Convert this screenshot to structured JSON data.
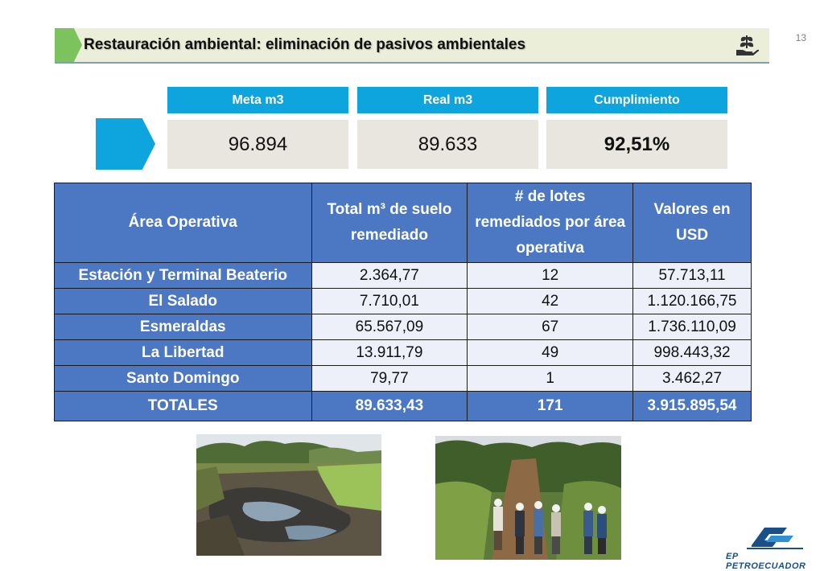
{
  "page_number": "13",
  "title": "Restauración ambiental: eliminación de pasivos ambientales",
  "kpis": [
    {
      "label": "Meta m3",
      "value": "96.894"
    },
    {
      "label": "Real m3",
      "value": "89.633"
    },
    {
      "label": "Cumplimiento",
      "value": "92,51%"
    }
  ],
  "table": {
    "headers": [
      "Área Operativa",
      "Total m³ de suelo remediado",
      "# de lotes remediados por área operativa",
      "Valores en USD"
    ],
    "rows": [
      [
        "Estación y Terminal Beaterio",
        "2.364,77",
        "12",
        "57.713,11"
      ],
      [
        "El Salado",
        "7.710,01",
        "42",
        "1.120.166,75"
      ],
      [
        "Esmeraldas",
        "65.567,09",
        "67",
        "1.736.110,09"
      ],
      [
        "La Libertad",
        "13.911,79",
        "49",
        "998.443,32"
      ],
      [
        "Santo Domingo",
        "79,77",
        "1",
        "3.462,27"
      ]
    ],
    "totals": [
      "TOTALES",
      "89.633,43",
      "171",
      "3.915.895,54"
    ]
  },
  "logo_text": "EP PETROECUADOR",
  "colors": {
    "accent_blue": "#0ea4dd",
    "table_blue": "#4c77c3",
    "title_green": "#7cc35d",
    "title_background": "#ebeed9"
  },
  "icons": [
    "leaf-in-hand-icon",
    "petroecuador-logo"
  ]
}
